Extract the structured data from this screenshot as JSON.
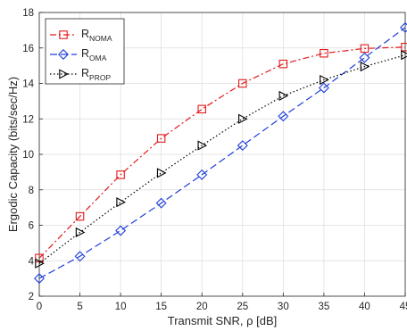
{
  "chart_data": {
    "type": "line",
    "xlabel": "Transmit SNR,  ρ [dB]",
    "ylabel": "Ergodic Capacity (bits/sec/Hz)",
    "xlim": [
      0,
      45
    ],
    "ylim": [
      2,
      18
    ],
    "x_ticks": [
      "0",
      "5",
      "10",
      "15",
      "20",
      "25",
      "30",
      "35",
      "40",
      "45"
    ],
    "y_ticks": [
      "2",
      "4",
      "6",
      "8",
      "10",
      "12",
      "14",
      "16",
      "18"
    ],
    "grid": true,
    "legend_position": "top-left",
    "x": [
      0,
      5,
      10,
      15,
      20,
      25,
      30,
      35,
      40,
      45
    ],
    "series": [
      {
        "legend_main": "R",
        "legend_sub": "NOMA",
        "color": "#e41a1c",
        "line_style": "dash-dot",
        "marker": "square",
        "values": [
          4.15,
          6.5,
          8.85,
          10.9,
          12.55,
          14.0,
          15.1,
          15.7,
          15.97,
          16.05
        ]
      },
      {
        "legend_main": "R",
        "legend_sub": "OMA",
        "color": "#1f3fdc",
        "line_style": "dashed",
        "marker": "diamond",
        "values": [
          3.0,
          4.25,
          5.7,
          7.25,
          8.85,
          10.5,
          12.15,
          13.75,
          15.45,
          17.15
        ]
      },
      {
        "legend_main": "R",
        "legend_sub": "PROP",
        "color": "#000000",
        "line_style": "dotted",
        "marker": "triangle-right",
        "values": [
          3.85,
          5.6,
          7.3,
          8.95,
          10.5,
          12.0,
          13.3,
          14.2,
          14.95,
          15.6
        ]
      }
    ]
  }
}
